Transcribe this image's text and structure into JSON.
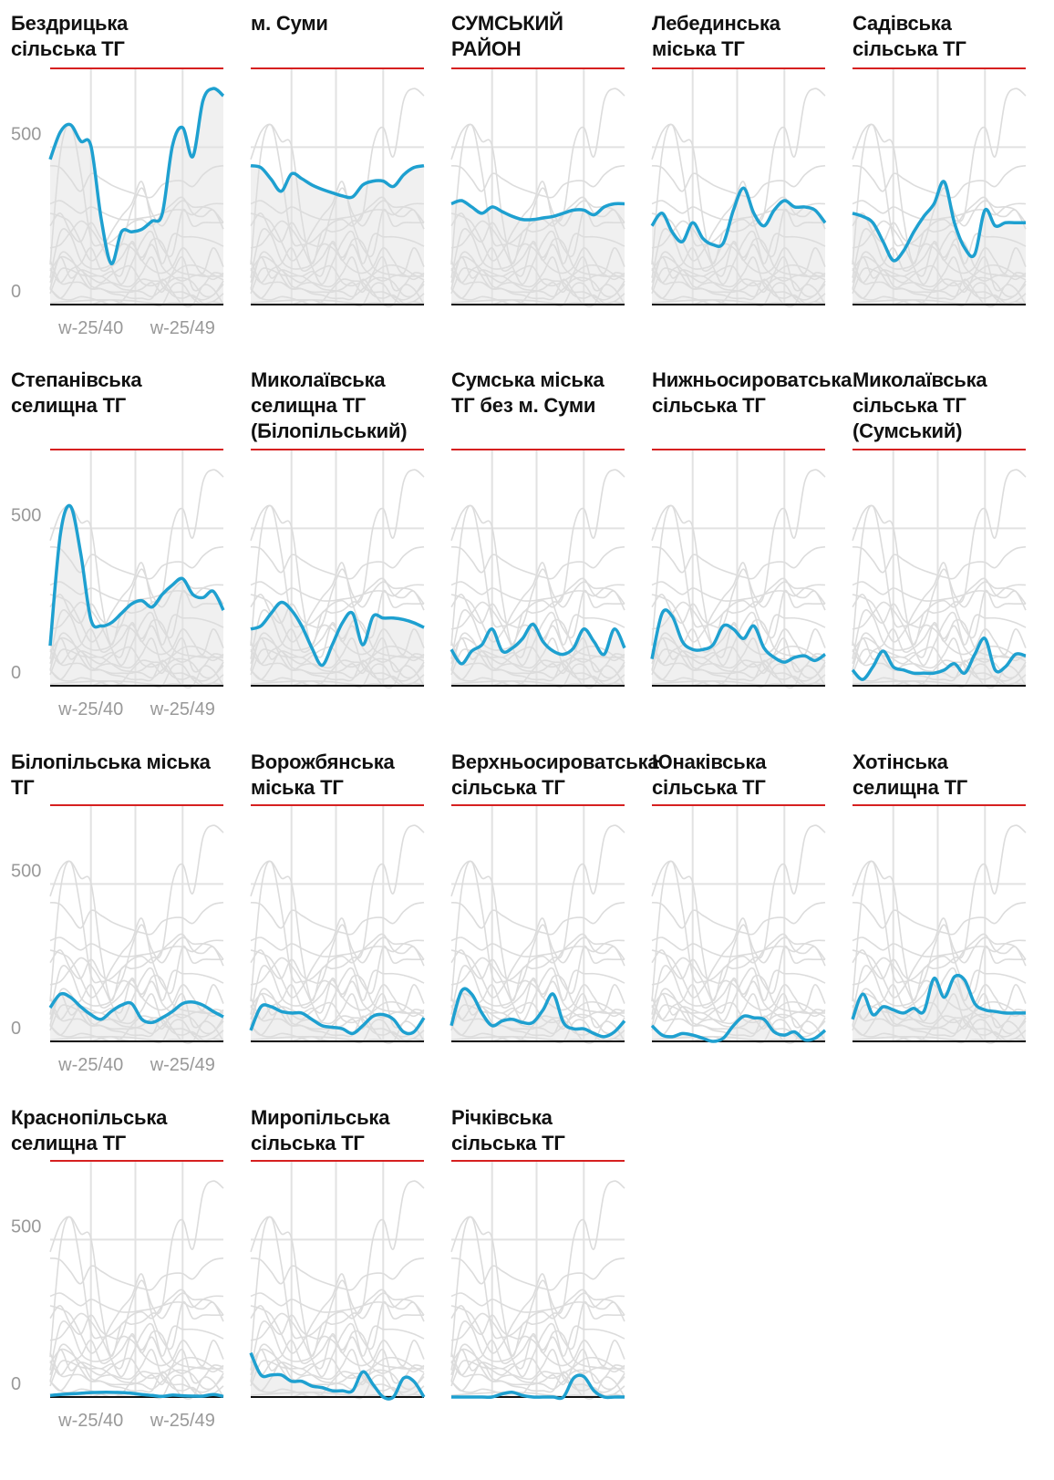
{
  "chart_data": {
    "type": "line",
    "categories": [
      null,
      null,
      null,
      null,
      "w-25/40",
      null,
      null,
      null,
      null,
      null,
      null,
      null,
      null,
      "w-25/49",
      null,
      null,
      null,
      null
    ],
    "ylim": [
      0,
      750
    ],
    "yticks": [
      0,
      500
    ],
    "grid": true,
    "highlight_color": "#1ea0d0",
    "context_color": "#dcdcdc",
    "area_color": "#f0f0f0",
    "series": [
      {
        "name": "Бездрицька\nсільська ТГ",
        "values": [
          461,
          548,
          571,
          519,
          504,
          274,
          130,
          231,
          231,
          239,
          265,
          288,
          504,
          562,
          470,
          648,
          686,
          663
        ]
      },
      {
        "name": "м. Суми",
        "values": [
          441,
          435,
          398,
          360,
          415,
          400,
          380,
          366,
          355,
          345,
          342,
          380,
          392,
          392,
          375,
          412,
          435,
          441
        ]
      },
      {
        "name": "СУМСЬКИЙ\nРАЙОН",
        "values": [
          320,
          330,
          310,
          290,
          310,
          295,
          280,
          270,
          270,
          275,
          280,
          290,
          300,
          300,
          285,
          310,
          320,
          320
        ]
      },
      {
        "name": "Лебединська\nміська ТГ",
        "values": [
          250,
          290,
          230,
          200,
          260,
          210,
          190,
          195,
          300,
          370,
          290,
          250,
          300,
          330,
          310,
          310,
          300,
          260
        ]
      },
      {
        "name": "Садівська\nсільська ТГ",
        "values": [
          290,
          280,
          260,
          200,
          140,
          170,
          230,
          280,
          320,
          390,
          260,
          180,
          160,
          300,
          250,
          260,
          260,
          260
        ]
      },
      {
        "name": "Степанівська\nселищна ТГ",
        "values": [
          127,
          480,
          570,
          420,
          210,
          190,
          200,
          230,
          260,
          270,
          250,
          290,
          320,
          340,
          290,
          280,
          300,
          240
        ]
      },
      {
        "name": "Миколаївська\nселищна ТГ\n(Білопільський)",
        "values": [
          180,
          190,
          230,
          265,
          240,
          190,
          120,
          65,
          130,
          200,
          230,
          130,
          220,
          215,
          215,
          210,
          200,
          185
        ]
      },
      {
        "name": "Сумська міська\nТГ без м. Суми",
        "values": [
          115,
          70,
          110,
          130,
          180,
          110,
          120,
          150,
          195,
          140,
          110,
          100,
          120,
          180,
          140,
          100,
          180,
          120
        ]
      },
      {
        "name": "Нижньосироватська\nсільська ТГ",
        "values": [
          85,
          230,
          220,
          140,
          115,
          115,
          130,
          190,
          180,
          150,
          190,
          120,
          90,
          75,
          90,
          95,
          80,
          100
        ]
      },
      {
        "name": "Миколаївська\nсільська ТГ\n(Сумський)",
        "values": [
          50,
          20,
          60,
          110,
          60,
          50,
          40,
          40,
          40,
          50,
          70,
          40,
          100,
          150,
          50,
          60,
          100,
          95
        ]
      },
      {
        "name": "Білопільська міська\nТГ",
        "values": [
          107,
          150,
          140,
          110,
          85,
          70,
          95,
          115,
          120,
          70,
          60,
          75,
          95,
          120,
          125,
          115,
          95,
          78
        ]
      },
      {
        "name": "Ворожбянська\nміська ТГ",
        "values": [
          35,
          110,
          110,
          95,
          90,
          90,
          70,
          50,
          45,
          40,
          25,
          50,
          80,
          85,
          70,
          30,
          30,
          75
        ]
      },
      {
        "name": "Верхньосироватська\nсільська ТГ",
        "values": [
          50,
          160,
          150,
          90,
          50,
          65,
          70,
          60,
          60,
          100,
          150,
          60,
          40,
          40,
          25,
          15,
          30,
          65
        ]
      },
      {
        "name": "Юнаківська\nсільська ТГ",
        "values": [
          50,
          20,
          15,
          25,
          20,
          10,
          0,
          10,
          50,
          80,
          75,
          70,
          30,
          20,
          30,
          5,
          10,
          35
        ]
      },
      {
        "name": "Хотінська\nселищна ТГ",
        "values": [
          70,
          150,
          85,
          110,
          100,
          90,
          105,
          95,
          200,
          140,
          205,
          195,
          120,
          100,
          95,
          90,
          90,
          90
        ]
      },
      {
        "name": "Краснопільська\nселищна ТГ",
        "values": [
          5,
          8,
          10,
          12,
          14,
          15,
          15,
          14,
          12,
          8,
          5,
          2,
          6,
          4,
          3,
          3,
          8,
          2
        ]
      },
      {
        "name": "Миропільська\nсільська ТГ",
        "values": [
          140,
          70,
          70,
          70,
          50,
          50,
          35,
          30,
          20,
          20,
          20,
          80,
          40,
          0,
          0,
          60,
          50,
          0
        ]
      },
      {
        "name": "Річківська\nсільська ТГ",
        "values": [
          0,
          0,
          0,
          0,
          0,
          10,
          15,
          5,
          0,
          0,
          0,
          0,
          60,
          65,
          20,
          0,
          0,
          0
        ]
      }
    ]
  }
}
